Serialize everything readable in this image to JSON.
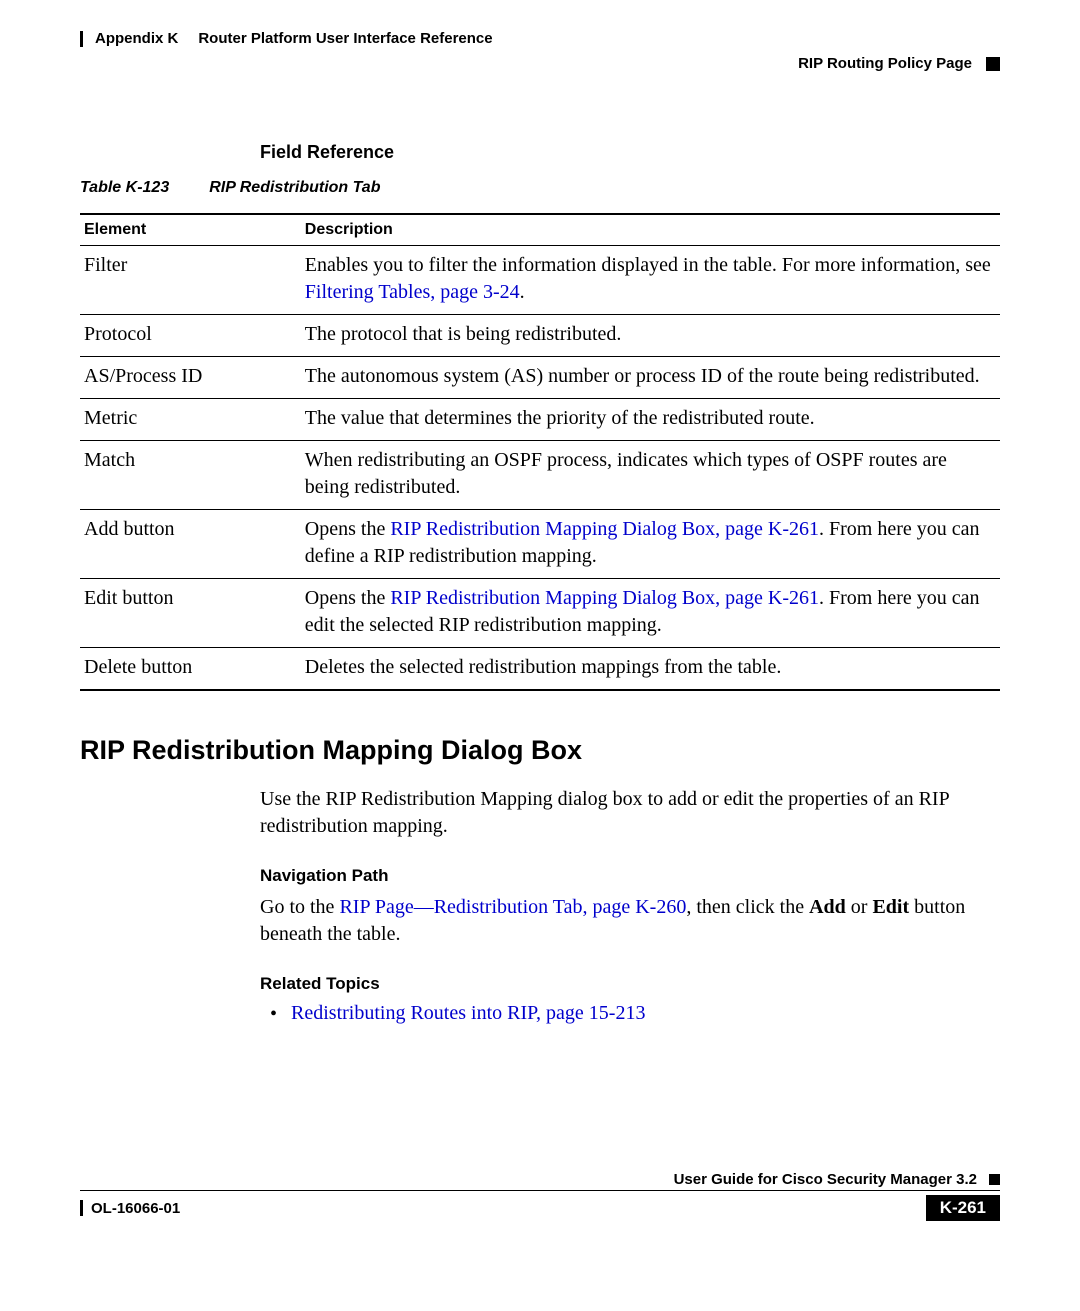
{
  "header": {
    "appendix_label": "Appendix K",
    "appendix_title": "Router Platform User Interface Reference",
    "section_label": "RIP Routing Policy Page"
  },
  "field_reference_heading": "Field Reference",
  "table_caption_num": "Table K-123",
  "table_caption_title": "RIP Redistribution Tab",
  "table_headers": {
    "element": "Element",
    "description": "Description"
  },
  "rows": {
    "filter": {
      "element": "Filter",
      "desc_pre": "Enables you to filter the information displayed in the table. For more information, see ",
      "desc_link": "Filtering Tables, page 3-24",
      "desc_post": "."
    },
    "protocol": {
      "element": "Protocol",
      "desc": "The protocol that is being redistributed."
    },
    "asprocess": {
      "element": "AS/Process ID",
      "desc": "The autonomous system (AS) number or process ID of the route being redistributed."
    },
    "metric": {
      "element": "Metric",
      "desc": "The value that determines the priority of the redistributed route."
    },
    "match": {
      "element": "Match",
      "desc": "When redistributing an OSPF process, indicates which types of OSPF routes are being redistributed."
    },
    "add": {
      "element": "Add button",
      "desc_pre": "Opens the ",
      "desc_link": "RIP Redistribution Mapping Dialog Box, page K-261",
      "desc_post": ". From here you can define a RIP redistribution mapping."
    },
    "edit": {
      "element": "Edit button",
      "desc_pre": "Opens the ",
      "desc_link": "RIP Redistribution Mapping Dialog Box, page K-261",
      "desc_post": ". From here you can edit the selected RIP redistribution mapping."
    },
    "delete": {
      "element": "Delete button",
      "desc": "Deletes the selected redistribution mappings from the table."
    }
  },
  "section_heading": "RIP Redistribution Mapping Dialog Box",
  "section_intro": "Use the RIP Redistribution Mapping dialog box to add or edit the properties of an RIP redistribution mapping.",
  "nav_path_heading": "Navigation Path",
  "nav_path_pre": "Go to the ",
  "nav_path_link": "RIP Page—Redistribution Tab, page K-260",
  "nav_path_mid": ", then click the ",
  "nav_path_add": "Add",
  "nav_path_or": " or ",
  "nav_path_edit": "Edit",
  "nav_path_post": " button beneath the table.",
  "related_topics_heading": "Related Topics",
  "related_topic_link": "Redistributing Routes into RIP, page 15-213",
  "footer": {
    "guide_title": "User Guide for Cisco Security Manager 3.2",
    "doc_id": "OL-16066-01",
    "page_num": "K-261"
  }
}
